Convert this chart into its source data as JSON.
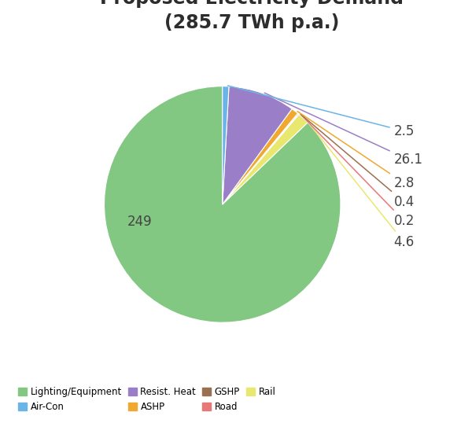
{
  "slices": [
    {
      "label": "Lighting/Equipment",
      "value": 249,
      "color": "#82c882"
    },
    {
      "label": "Rail",
      "value": 4.6,
      "color": "#e8e870"
    },
    {
      "label": "Road",
      "value": 0.2,
      "color": "#e87878"
    },
    {
      "label": "GSHP",
      "value": 0.4,
      "color": "#9b7050"
    },
    {
      "label": "ASHP",
      "value": 2.8,
      "color": "#f0a830"
    },
    {
      "label": "Resist. Heat",
      "value": 26.1,
      "color": "#9b7ec8"
    },
    {
      "label": "Air-Con",
      "value": 2.5,
      "color": "#6ab4e8"
    }
  ],
  "label_values": {
    "Lighting/Equipment": "249",
    "Air-Con": "2.5",
    "Resist. Heat": "26.1",
    "ASHP": "2.8",
    "GSHP": "0.4",
    "Road": "0.2",
    "Rail": "4.6"
  },
  "label_colors": {
    "Lighting/Equipment": "#82c882",
    "Air-Con": "#6ab4e8",
    "Resist. Heat": "#9b7ec8",
    "ASHP": "#f0a830",
    "GSHP": "#9b7050",
    "Road": "#e87878",
    "Rail": "#e8e870"
  },
  "legend_order": [
    "Lighting/Equipment",
    "Air-Con",
    "Resist. Heat",
    "ASHP",
    "GSHP",
    "Road",
    "Rail"
  ],
  "legend_colors": [
    "#82c882",
    "#6ab4e8",
    "#9b7ec8",
    "#f0a830",
    "#9b7050",
    "#e87878",
    "#e8e870"
  ],
  "startangle": 90,
  "background_color": "#ffffff",
  "title_fontsize": 17,
  "title_color": "#2d2d2d",
  "label_fontsize": 12,
  "label_color": "#444444"
}
